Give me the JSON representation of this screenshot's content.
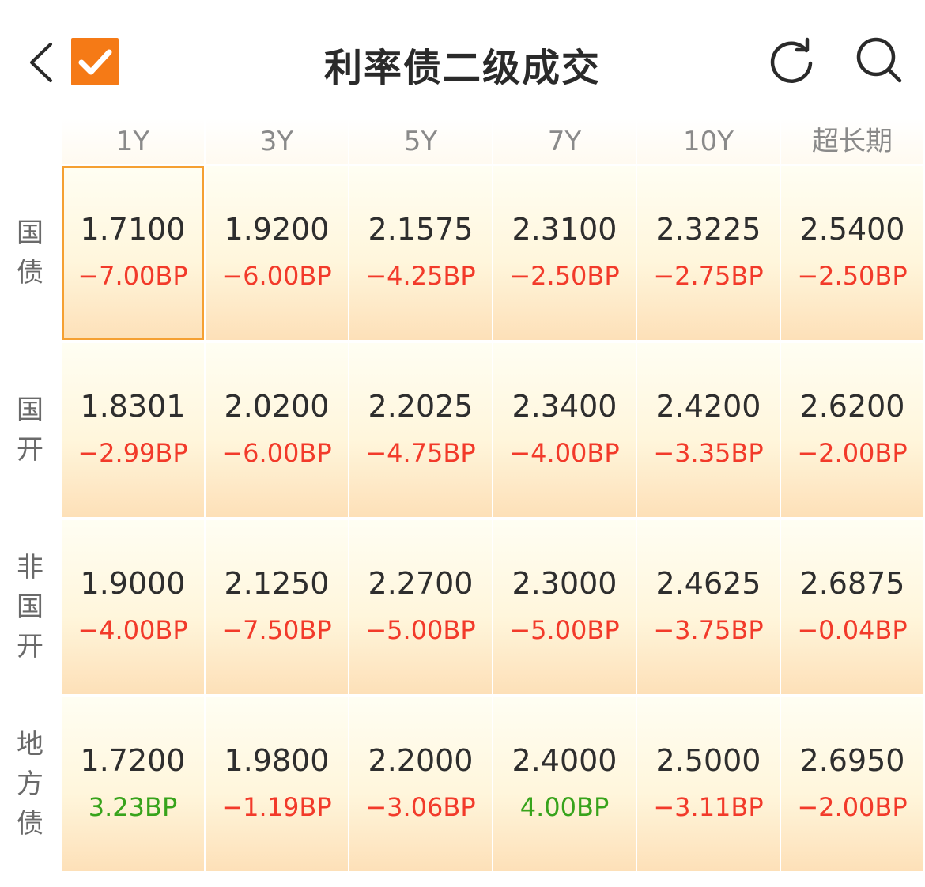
{
  "header": {
    "title": "利率债二级成交",
    "back_icon": "chevron-left-icon",
    "check_icon": "checkbox-checked-icon",
    "refresh_icon": "refresh-icon",
    "search_icon": "search-icon",
    "accent_color": "#f57a16"
  },
  "columns": [
    "1Y",
    "3Y",
    "5Y",
    "7Y",
    "10Y",
    "超长期"
  ],
  "rows": [
    {
      "label": [
        "国",
        "债"
      ],
      "cells": [
        {
          "rate": "1.7100",
          "change": "−7.00BP",
          "trend": "neg"
        },
        {
          "rate": "1.9200",
          "change": "−6.00BP",
          "trend": "neg"
        },
        {
          "rate": "2.1575",
          "change": "−4.25BP",
          "trend": "neg"
        },
        {
          "rate": "2.3100",
          "change": "−2.50BP",
          "trend": "neg"
        },
        {
          "rate": "2.3225",
          "change": "−2.75BP",
          "trend": "neg"
        },
        {
          "rate": "2.5400",
          "change": "−2.50BP",
          "trend": "neg"
        }
      ]
    },
    {
      "label": [
        "国",
        "开"
      ],
      "cells": [
        {
          "rate": "1.8301",
          "change": "−2.99BP",
          "trend": "neg"
        },
        {
          "rate": "2.0200",
          "change": "−6.00BP",
          "trend": "neg"
        },
        {
          "rate": "2.2025",
          "change": "−4.75BP",
          "trend": "neg"
        },
        {
          "rate": "2.3400",
          "change": "−4.00BP",
          "trend": "neg"
        },
        {
          "rate": "2.4200",
          "change": "−3.35BP",
          "trend": "neg"
        },
        {
          "rate": "2.6200",
          "change": "−2.00BP",
          "trend": "neg"
        }
      ]
    },
    {
      "label": [
        "非",
        "国",
        "开"
      ],
      "cells": [
        {
          "rate": "1.9000",
          "change": "−4.00BP",
          "trend": "neg"
        },
        {
          "rate": "2.1250",
          "change": "−7.50BP",
          "trend": "neg"
        },
        {
          "rate": "2.2700",
          "change": "−5.00BP",
          "trend": "neg"
        },
        {
          "rate": "2.3000",
          "change": "−5.00BP",
          "trend": "neg"
        },
        {
          "rate": "2.4625",
          "change": "−3.75BP",
          "trend": "neg"
        },
        {
          "rate": "2.6875",
          "change": "−0.04BP",
          "trend": "neg"
        }
      ]
    },
    {
      "label": [
        "地",
        "方",
        "债"
      ],
      "cells": [
        {
          "rate": "1.7200",
          "change": "3.23BP",
          "trend": "pos"
        },
        {
          "rate": "1.9800",
          "change": "−1.19BP",
          "trend": "neg"
        },
        {
          "rate": "2.2000",
          "change": "−3.06BP",
          "trend": "neg"
        },
        {
          "rate": "2.4000",
          "change": "4.00BP",
          "trend": "pos"
        },
        {
          "rate": "2.5000",
          "change": "−3.11BP",
          "trend": "neg"
        },
        {
          "rate": "2.6950",
          "change": "−2.00BP",
          "trend": "neg"
        }
      ]
    }
  ],
  "colors": {
    "negative": "#f23a2a",
    "positive": "#37a31b",
    "selected_border": "#f5a032"
  }
}
